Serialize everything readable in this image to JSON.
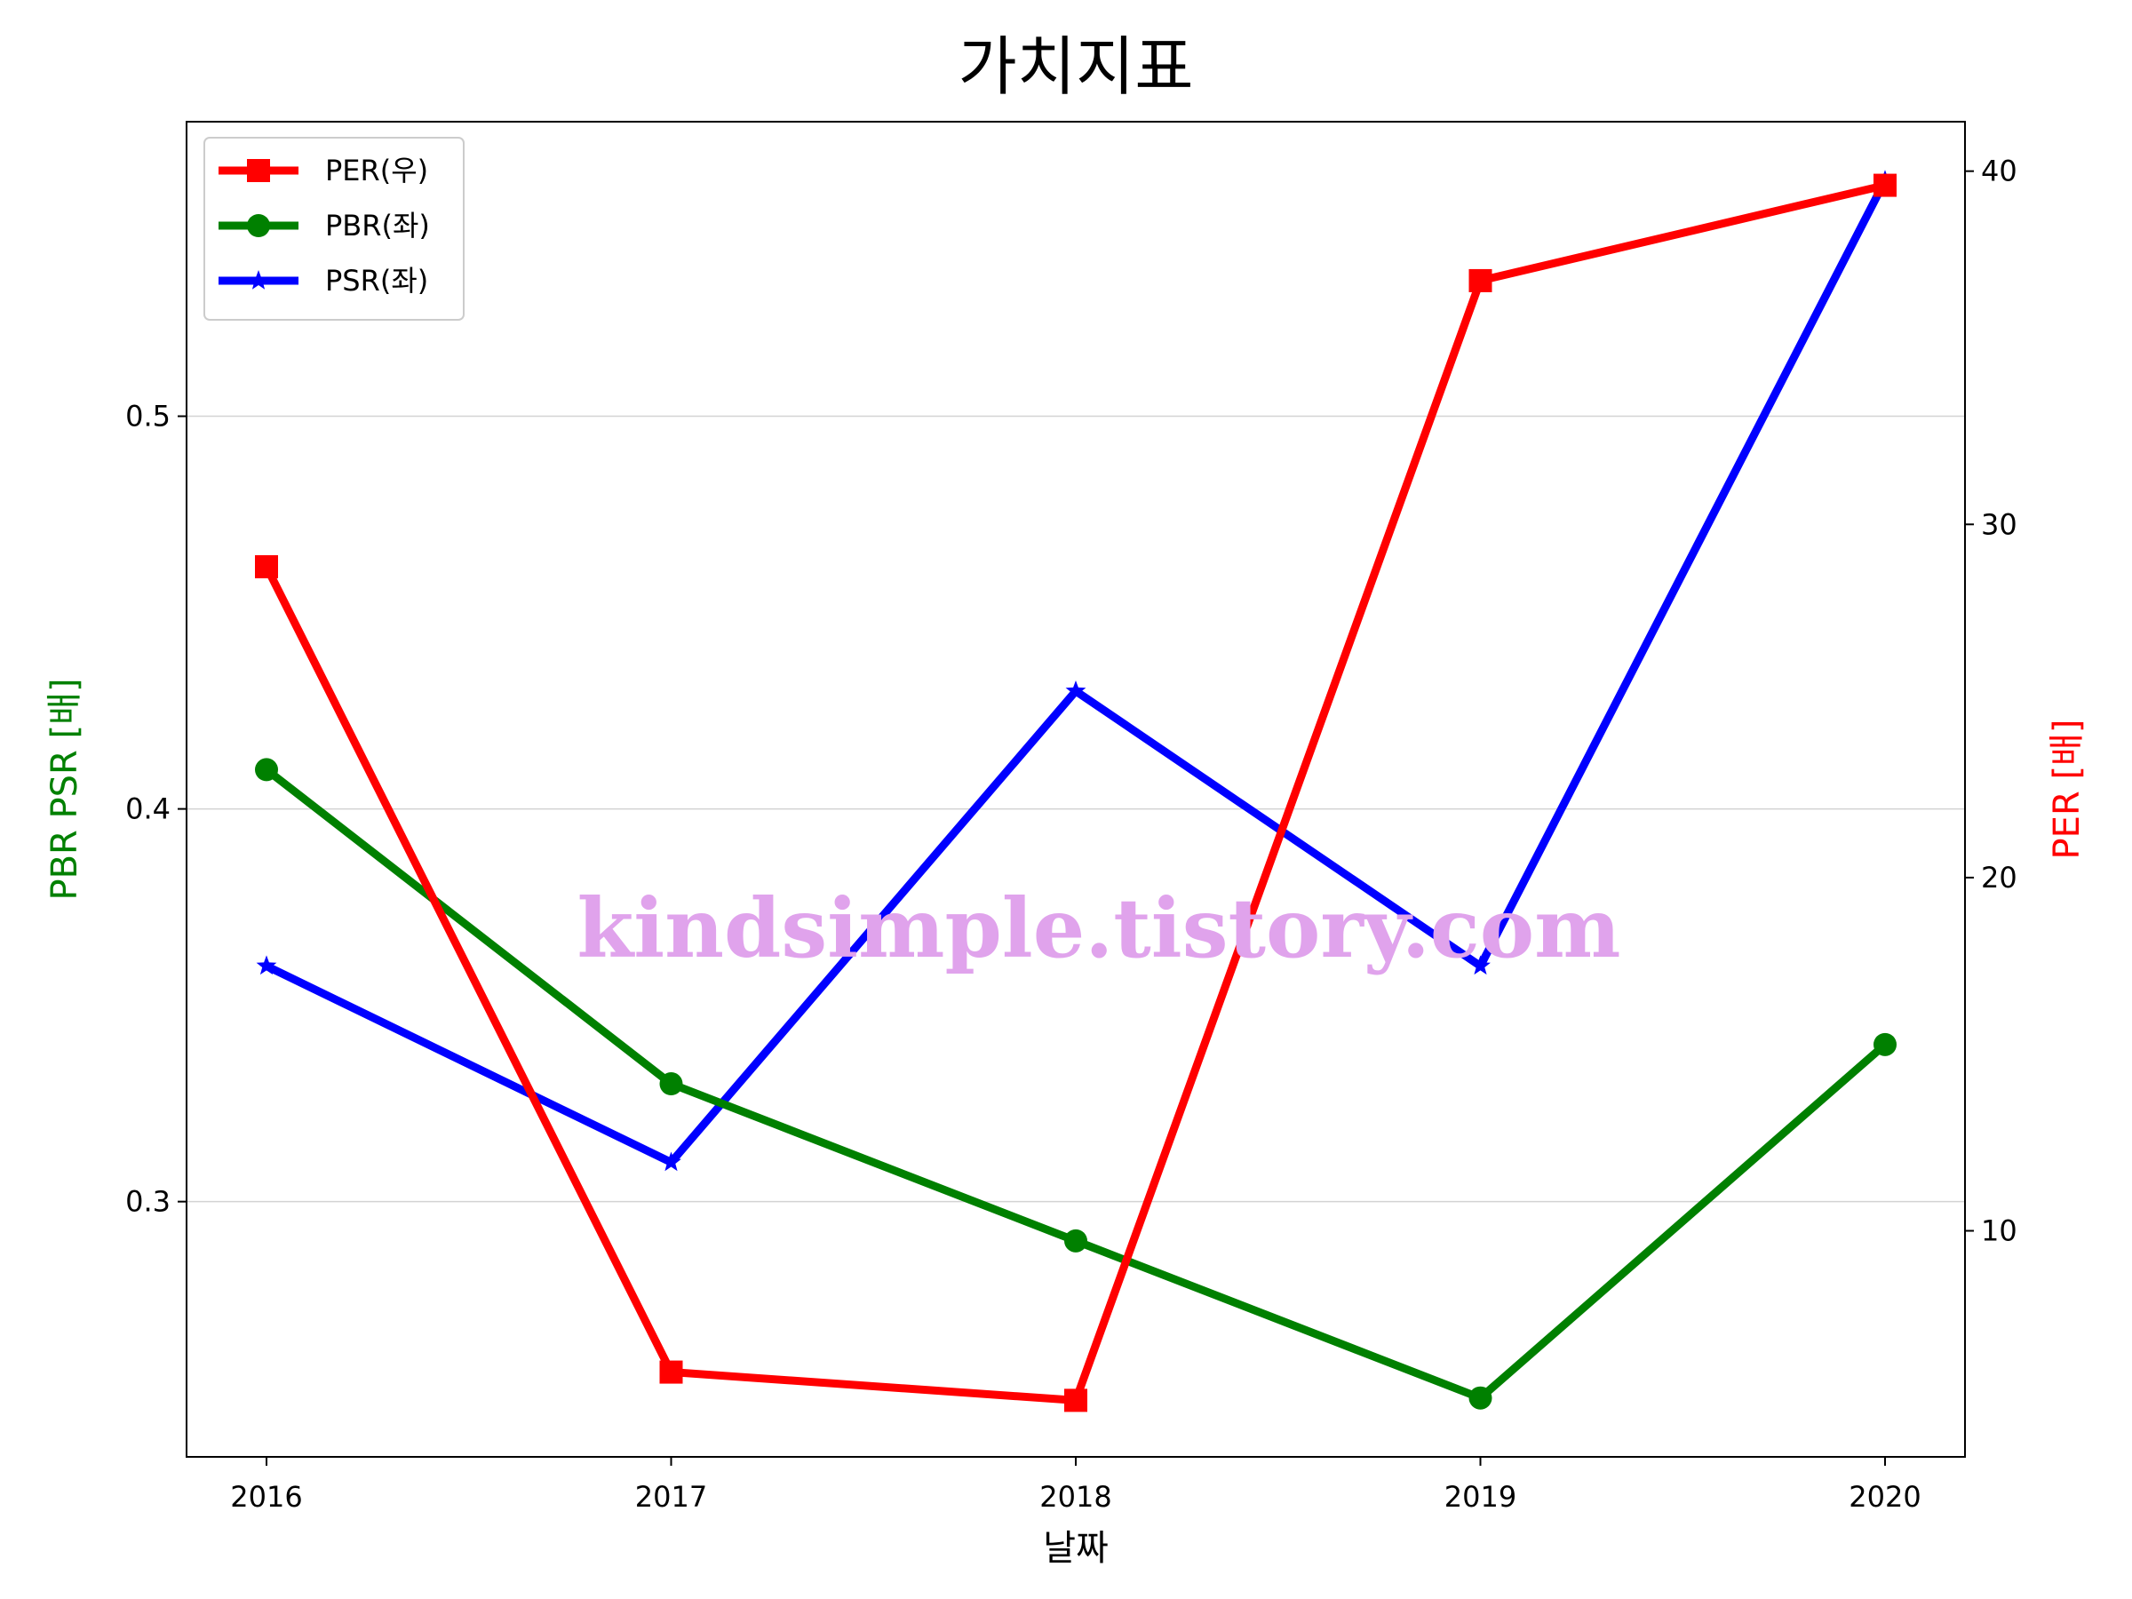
{
  "chart_data": {
    "type": "line",
    "title": "가치지표",
    "xlabel": "날짜",
    "ylabel_left": "PBR PSR [배]",
    "ylabel_right": "PER [배]",
    "categories": [
      "2016",
      "2017",
      "2018",
      "2019",
      "2020"
    ],
    "ylim_left": [
      0.235,
      0.575
    ],
    "yticks_left": [
      "0.3",
      "0.4",
      "0.5"
    ],
    "ylim_right": [
      3.6,
      41.4
    ],
    "yticks_right": [
      "10",
      "20",
      "30",
      "40"
    ],
    "grid": "horizontal (left axis)",
    "legend_position": "top-left",
    "series": [
      {
        "name": "PER(우)",
        "axis": "right",
        "color": "#ff0000",
        "marker": "square",
        "values": [
          28.8,
          6.0,
          5.2,
          36.9,
          39.6
        ]
      },
      {
        "name": "PBR(좌)",
        "axis": "left",
        "color": "#008000",
        "marker": "circle",
        "values": [
          0.41,
          0.33,
          0.29,
          0.25,
          0.34
        ]
      },
      {
        "name": "PSR(좌)",
        "axis": "left",
        "color": "#0000ff",
        "marker": "star",
        "values": [
          0.36,
          0.31,
          0.43,
          0.36,
          0.56
        ]
      }
    ],
    "watermark": "kindsimple.tistory.com"
  }
}
